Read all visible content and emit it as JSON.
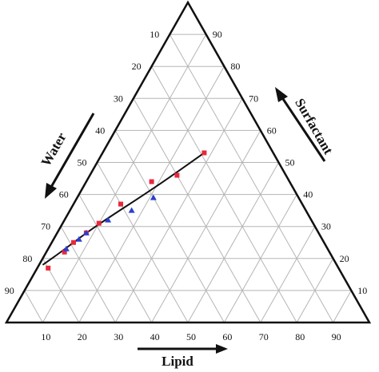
{
  "chart_data": {
    "type": "scatter",
    "subtype": "ternary",
    "axes": {
      "water": {
        "label": "Water",
        "ticks": [
          "10",
          "20",
          "30",
          "40",
          "50",
          "60",
          "70",
          "80",
          "90"
        ]
      },
      "surfactant": {
        "label": "Surfactant",
        "ticks": [
          "10",
          "20",
          "30",
          "40",
          "50",
          "60",
          "70",
          "80",
          "90"
        ]
      },
      "lipid": {
        "label": "Lipid",
        "ticks": [
          "10",
          "20",
          "30",
          "40",
          "50",
          "60",
          "70",
          "80",
          "90"
        ]
      }
    },
    "grid": true,
    "series": [
      {
        "marker": "circle",
        "color": "#e8283c",
        "points": [
          {
            "lipid": 3,
            "surfactant": 17
          },
          {
            "lipid": 5,
            "surfactant": 22
          },
          {
            "lipid": 6,
            "surfactant": 25
          },
          {
            "lipid": 8,
            "surfactant": 28
          },
          {
            "lipid": 10,
            "surfactant": 31
          },
          {
            "lipid": 13,
            "surfactant": 37
          },
          {
            "lipid": 18,
            "surfactant": 44
          },
          {
            "lipid": 24,
            "surfactant": 46
          },
          {
            "lipid": 28,
            "surfactant": 53
          }
        ]
      },
      {
        "marker": "triangle",
        "color": "#2a3fd0",
        "points": [
          {
            "lipid": 5,
            "surfactant": 23
          },
          {
            "lipid": 7,
            "surfactant": 26
          },
          {
            "lipid": 8,
            "surfactant": 28
          },
          {
            "lipid": 12,
            "surfactant": 32
          },
          {
            "lipid": 17,
            "surfactant": 35
          },
          {
            "lipid": 21,
            "surfactant": 39
          }
        ]
      }
    ],
    "boundary_curve": [
      {
        "lipid": 1,
        "surfactant": 18
      },
      {
        "lipid": 4,
        "surfactant": 22
      },
      {
        "lipid": 8,
        "surfactant": 28
      },
      {
        "lipid": 12,
        "surfactant": 33
      },
      {
        "lipid": 18,
        "surfactant": 40
      },
      {
        "lipid": 22,
        "surfactant": 45
      },
      {
        "lipid": 28,
        "surfactant": 53
      }
    ],
    "colors": {
      "line": "#111111",
      "grid": "#b5b5b5"
    }
  }
}
